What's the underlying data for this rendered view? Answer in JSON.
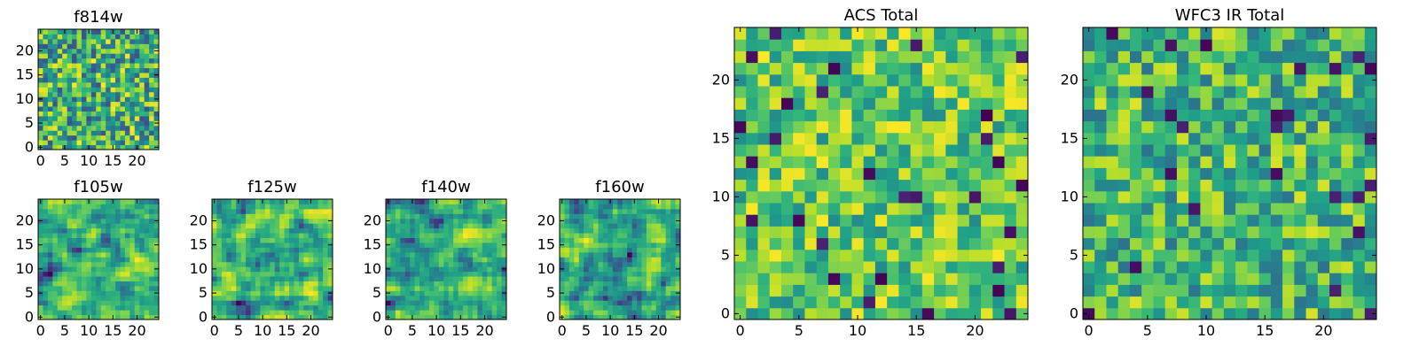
{
  "chart_data": [
    {
      "type": "heatmap",
      "id": "f814w",
      "title": "f814w",
      "grid": [
        25,
        25
      ],
      "xlim": [
        -0.5,
        24.5
      ],
      "ylim": [
        -0.5,
        24.5
      ],
      "x_ticks": [
        0,
        5,
        10,
        15,
        20
      ],
      "y_ticks": [
        0,
        5,
        10,
        15,
        20
      ],
      "x_tick_labels": [
        "0",
        "5",
        "10",
        "15",
        "20"
      ],
      "y_tick_labels": [
        "0",
        "5",
        "10",
        "15",
        "20"
      ],
      "colormap": "viridis",
      "value_range": [
        0,
        1
      ],
      "seed": 814,
      "values_note": "pixel-level random noise"
    },
    {
      "type": "heatmap",
      "id": "f105w",
      "title": "f105w",
      "grid": [
        25,
        25
      ],
      "xlim": [
        -0.5,
        24.5
      ],
      "ylim": [
        -0.5,
        24.5
      ],
      "x_ticks": [
        0,
        5,
        10,
        15,
        20
      ],
      "y_ticks": [
        0,
        5,
        10,
        15,
        20
      ],
      "x_tick_labels": [
        "0",
        "5",
        "10",
        "15",
        "20"
      ],
      "y_tick_labels": [
        "0",
        "5",
        "10",
        "15",
        "20"
      ],
      "colormap": "viridis",
      "value_range": [
        0,
        1
      ],
      "seed": 105,
      "values_note": "smoothed random noise"
    },
    {
      "type": "heatmap",
      "id": "f125w",
      "title": "f125w",
      "grid": [
        25,
        25
      ],
      "xlim": [
        -0.5,
        24.5
      ],
      "ylim": [
        -0.5,
        24.5
      ],
      "x_ticks": [
        0,
        5,
        10,
        15,
        20
      ],
      "y_ticks": [
        0,
        5,
        10,
        15,
        20
      ],
      "x_tick_labels": [
        "0",
        "5",
        "10",
        "15",
        "20"
      ],
      "y_tick_labels": [
        "0",
        "5",
        "10",
        "15",
        "20"
      ],
      "colormap": "viridis",
      "value_range": [
        0,
        1
      ],
      "seed": 125,
      "values_note": "smoothed random noise"
    },
    {
      "type": "heatmap",
      "id": "f140w",
      "title": "f140w",
      "grid": [
        25,
        25
      ],
      "xlim": [
        -0.5,
        24.5
      ],
      "ylim": [
        -0.5,
        24.5
      ],
      "x_ticks": [
        0,
        5,
        10,
        15,
        20
      ],
      "y_ticks": [
        0,
        5,
        10,
        15,
        20
      ],
      "x_tick_labels": [
        "0",
        "5",
        "10",
        "15",
        "20"
      ],
      "y_tick_labels": [
        "0",
        "5",
        "10",
        "15",
        "20"
      ],
      "colormap": "viridis",
      "value_range": [
        0,
        1
      ],
      "seed": 140,
      "values_note": "smoothed random noise"
    },
    {
      "type": "heatmap",
      "id": "f160w",
      "title": "f160w",
      "grid": [
        25,
        25
      ],
      "xlim": [
        -0.5,
        24.5
      ],
      "ylim": [
        -0.5,
        24.5
      ],
      "x_ticks": [
        0,
        5,
        10,
        15,
        20
      ],
      "y_ticks": [
        0,
        5,
        10,
        15,
        20
      ],
      "x_tick_labels": [
        "0",
        "5",
        "10",
        "15",
        "20"
      ],
      "y_tick_labels": [
        "0",
        "5",
        "10",
        "15",
        "20"
      ],
      "colormap": "viridis",
      "value_range": [
        0,
        1
      ],
      "seed": 160,
      "values_note": "smoothed random noise"
    },
    {
      "type": "heatmap",
      "id": "acs-total",
      "title": "ACS Total",
      "grid": [
        25,
        25
      ],
      "xlim": [
        -0.5,
        24.5
      ],
      "ylim": [
        -0.5,
        24.5
      ],
      "x_ticks": [
        0,
        5,
        10,
        15,
        20
      ],
      "y_ticks": [
        0,
        5,
        10,
        15,
        20
      ],
      "x_tick_labels": [
        "0",
        "5",
        "10",
        "15",
        "20"
      ],
      "y_tick_labels": [
        "0",
        "5",
        "10",
        "15",
        "20"
      ],
      "colormap": "viridis",
      "value_range": [
        0,
        1
      ],
      "seed": 1001,
      "values_note": "random noise, mostly high values"
    },
    {
      "type": "heatmap",
      "id": "wfc3-ir-total",
      "title": "WFC3 IR Total",
      "grid": [
        25,
        25
      ],
      "xlim": [
        -0.5,
        24.5
      ],
      "ylim": [
        -0.5,
        24.5
      ],
      "x_ticks": [
        0,
        5,
        10,
        15,
        20
      ],
      "y_ticks": [
        0,
        5,
        10,
        15,
        20
      ],
      "x_tick_labels": [
        "0",
        "5",
        "10",
        "15",
        "20"
      ],
      "y_tick_labels": [
        "0",
        "5",
        "10",
        "15",
        "20"
      ],
      "colormap": "viridis",
      "value_range": [
        0,
        1
      ],
      "seed": 2002,
      "values_note": "random noise, mid-to-high values"
    }
  ]
}
